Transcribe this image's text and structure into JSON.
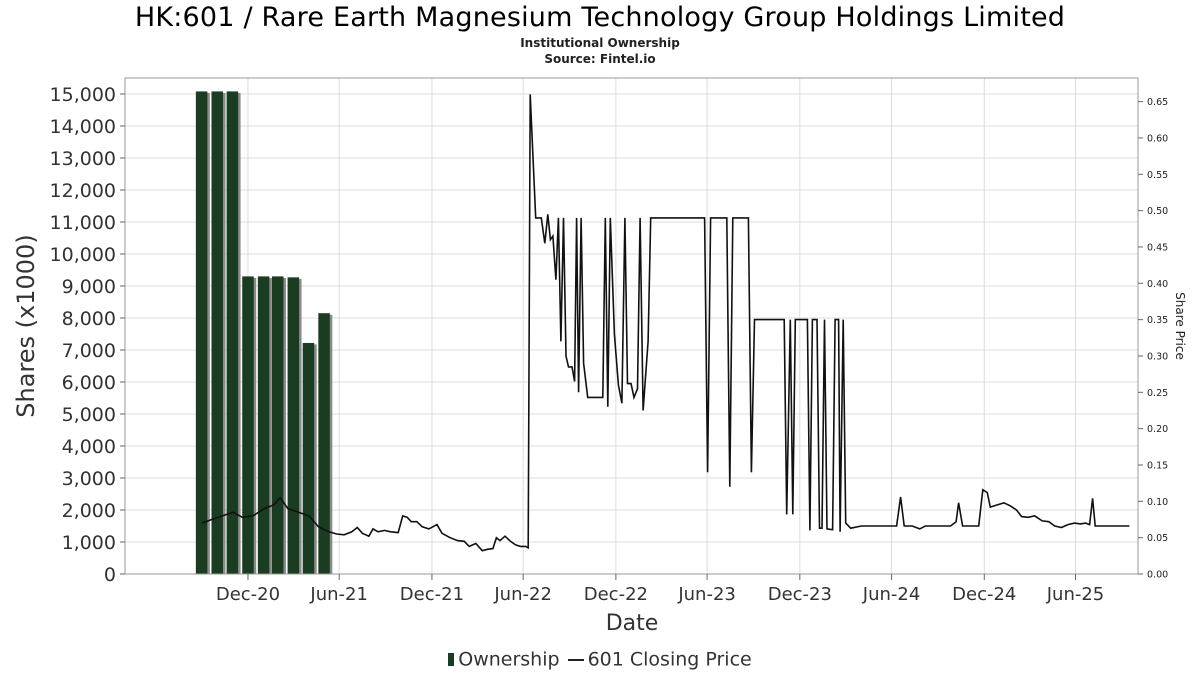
{
  "header": {
    "title": "HK:601 / Rare Earth Magnesium Technology Group Holdings Limited",
    "subtitle": "Institutional Ownership",
    "source": "Source: Fintel.io"
  },
  "legend": {
    "ownership": "Ownership",
    "price": "601 Closing Price"
  },
  "colors": {
    "bar": "#1a3d22",
    "bar_shadow": "#8a8a8a",
    "line": "#111111",
    "grid": "#dddddd"
  },
  "chart_data": {
    "type": "bar",
    "title": "HK:601 / Rare Earth Magnesium Technology Group Holdings Limited",
    "subtitle": "Institutional Ownership",
    "xlabel": "Date",
    "ylabel": "Shares (x1000)",
    "y2label": "Share Price",
    "grid": true,
    "legend_position": "bottom-center",
    "x_range": [
      "2020-05-01",
      "2025-11-01"
    ],
    "x_ticks": [
      {
        "date": "2020-12-31",
        "label": "Dec-20"
      },
      {
        "date": "2021-06-30",
        "label": "Jun-21"
      },
      {
        "date": "2021-12-31",
        "label": "Dec-21"
      },
      {
        "date": "2022-06-30",
        "label": "Jun-22"
      },
      {
        "date": "2022-12-31",
        "label": "Dec-22"
      },
      {
        "date": "2023-06-30",
        "label": "Jun-23"
      },
      {
        "date": "2023-12-31",
        "label": "Dec-23"
      },
      {
        "date": "2024-06-30",
        "label": "Jun-24"
      },
      {
        "date": "2024-12-31",
        "label": "Dec-24"
      },
      {
        "date": "2025-06-30",
        "label": "Jun-25"
      }
    ],
    "ylim": [
      0,
      15500
    ],
    "y_ticks": [
      0,
      1000,
      2000,
      3000,
      4000,
      5000,
      6000,
      7000,
      8000,
      9000,
      10000,
      11000,
      12000,
      13000,
      14000,
      15000
    ],
    "y_tick_labels": [
      "0",
      "1,000",
      "2,000",
      "3,000",
      "4,000",
      "5,000",
      "6,000",
      "7,000",
      "8,000",
      "9,000",
      "10,000",
      "11,000",
      "12,000",
      "13,000",
      "14,000",
      "15,000"
    ],
    "y2lim": [
      0,
      0.6825
    ],
    "y2_ticks": [
      0,
      0.05,
      0.1,
      0.15,
      0.2,
      0.25,
      0.3,
      0.35,
      0.4,
      0.45,
      0.5,
      0.55,
      0.6,
      0.65
    ],
    "y2_tick_labels": [
      "0.00",
      "0.05",
      "0.10",
      "0.15",
      "0.20",
      "0.25",
      "0.30",
      "0.35",
      "0.40",
      "0.45",
      "0.50",
      "0.55",
      "0.60",
      "0.65"
    ],
    "series": [
      {
        "name": "Ownership",
        "kind": "bar",
        "axis": "left",
        "points": [
          {
            "date": "2020-09-30",
            "value": 15080
          },
          {
            "date": "2020-10-31",
            "value": 15080
          },
          {
            "date": "2020-11-30",
            "value": 15080
          },
          {
            "date": "2020-12-31",
            "value": 9300
          },
          {
            "date": "2021-01-31",
            "value": 9300
          },
          {
            "date": "2021-02-28",
            "value": 9300
          },
          {
            "date": "2021-03-31",
            "value": 9270
          },
          {
            "date": "2021-04-30",
            "value": 7220
          },
          {
            "date": "2021-05-31",
            "value": 8150
          }
        ]
      },
      {
        "name": "601 Closing Price",
        "kind": "line",
        "axis": "right",
        "points": [
          [
            "2020-10-01",
            0.07
          ],
          [
            "2020-10-20",
            0.075
          ],
          [
            "2020-11-10",
            0.08
          ],
          [
            "2020-12-01",
            0.085
          ],
          [
            "2020-12-20",
            0.078
          ],
          [
            "2021-01-10",
            0.08
          ],
          [
            "2021-02-01",
            0.09
          ],
          [
            "2021-02-20",
            0.095
          ],
          [
            "2021-03-05",
            0.105
          ],
          [
            "2021-03-20",
            0.09
          ],
          [
            "2021-04-10",
            0.085
          ],
          [
            "2021-05-01",
            0.08
          ],
          [
            "2021-05-20",
            0.065
          ],
          [
            "2021-06-10",
            0.058
          ],
          [
            "2021-06-25",
            0.055
          ],
          [
            "2021-07-10",
            0.054
          ],
          [
            "2021-07-25",
            0.058
          ],
          [
            "2021-08-05",
            0.064
          ],
          [
            "2021-08-15",
            0.056
          ],
          [
            "2021-08-28",
            0.052
          ],
          [
            "2021-09-05",
            0.062
          ],
          [
            "2021-09-15",
            0.058
          ],
          [
            "2021-09-28",
            0.06
          ],
          [
            "2021-10-10",
            0.058
          ],
          [
            "2021-10-25",
            0.057
          ],
          [
            "2021-11-03",
            0.08
          ],
          [
            "2021-11-12",
            0.078
          ],
          [
            "2021-11-20",
            0.072
          ],
          [
            "2021-12-01",
            0.072
          ],
          [
            "2021-12-12",
            0.065
          ],
          [
            "2021-12-25",
            0.062
          ],
          [
            "2022-01-10",
            0.068
          ],
          [
            "2022-01-20",
            0.056
          ],
          [
            "2022-02-05",
            0.05
          ],
          [
            "2022-02-20",
            0.046
          ],
          [
            "2022-03-05",
            0.045
          ],
          [
            "2022-03-15",
            0.038
          ],
          [
            "2022-03-28",
            0.042
          ],
          [
            "2022-04-10",
            0.032
          ],
          [
            "2022-04-20",
            0.034
          ],
          [
            "2022-05-01",
            0.035
          ],
          [
            "2022-05-08",
            0.05
          ],
          [
            "2022-05-15",
            0.046
          ],
          [
            "2022-05-25",
            0.052
          ],
          [
            "2022-06-05",
            0.045
          ],
          [
            "2022-06-15",
            0.04
          ],
          [
            "2022-06-25",
            0.038
          ],
          [
            "2022-07-05",
            0.038
          ],
          [
            "2022-07-10",
            0.036
          ],
          [
            "2022-07-14",
            0.66
          ],
          [
            "2022-07-25",
            0.49
          ],
          [
            "2022-08-05",
            0.49
          ],
          [
            "2022-08-12",
            0.455
          ],
          [
            "2022-08-18",
            0.495
          ],
          [
            "2022-08-23",
            0.46
          ],
          [
            "2022-08-28",
            0.465
          ],
          [
            "2022-09-03",
            0.405
          ],
          [
            "2022-09-08",
            0.49
          ],
          [
            "2022-09-13",
            0.32
          ],
          [
            "2022-09-18",
            0.49
          ],
          [
            "2022-09-23",
            0.3
          ],
          [
            "2022-09-28",
            0.285
          ],
          [
            "2022-10-05",
            0.285
          ],
          [
            "2022-10-10",
            0.265
          ],
          [
            "2022-10-14",
            0.49
          ],
          [
            "2022-10-18",
            0.25
          ],
          [
            "2022-10-23",
            0.49
          ],
          [
            "2022-10-28",
            0.29
          ],
          [
            "2022-11-05",
            0.243
          ],
          [
            "2022-11-20",
            0.243
          ],
          [
            "2022-12-05",
            0.243
          ],
          [
            "2022-12-10",
            0.49
          ],
          [
            "2022-12-15",
            0.23
          ],
          [
            "2022-12-20",
            0.49
          ],
          [
            "2022-12-28",
            0.33
          ],
          [
            "2023-01-05",
            0.26
          ],
          [
            "2023-01-12",
            0.235
          ],
          [
            "2023-01-18",
            0.49
          ],
          [
            "2023-01-23",
            0.262
          ],
          [
            "2023-01-30",
            0.262
          ],
          [
            "2023-02-05",
            0.243
          ],
          [
            "2023-02-12",
            0.255
          ],
          [
            "2023-02-17",
            0.49
          ],
          [
            "2023-02-23",
            0.225
          ],
          [
            "2023-03-05",
            0.32
          ],
          [
            "2023-03-10",
            0.49
          ],
          [
            "2023-04-01",
            0.49
          ],
          [
            "2023-05-01",
            0.49
          ],
          [
            "2023-06-01",
            0.49
          ],
          [
            "2023-06-25",
            0.49
          ],
          [
            "2023-07-01",
            0.14
          ],
          [
            "2023-07-07",
            0.49
          ],
          [
            "2023-08-01",
            0.49
          ],
          [
            "2023-08-08",
            0.49
          ],
          [
            "2023-08-14",
            0.12
          ],
          [
            "2023-08-20",
            0.49
          ],
          [
            "2023-09-10",
            0.49
          ],
          [
            "2023-09-20",
            0.49
          ],
          [
            "2023-09-26",
            0.14
          ],
          [
            "2023-10-02",
            0.35
          ],
          [
            "2023-11-10",
            0.35
          ],
          [
            "2023-11-30",
            0.35
          ],
          [
            "2023-12-05",
            0.082
          ],
          [
            "2023-12-12",
            0.35
          ],
          [
            "2023-12-17",
            0.082
          ],
          [
            "2023-12-22",
            0.35
          ],
          [
            "2024-01-15",
            0.35
          ],
          [
            "2024-01-20",
            0.06
          ],
          [
            "2024-01-25",
            0.35
          ],
          [
            "2024-02-03",
            0.35
          ],
          [
            "2024-02-08",
            0.063
          ],
          [
            "2024-02-13",
            0.063
          ],
          [
            "2024-02-18",
            0.35
          ],
          [
            "2024-02-23",
            0.062
          ],
          [
            "2024-03-05",
            0.061
          ],
          [
            "2024-03-10",
            0.35
          ],
          [
            "2024-03-17",
            0.35
          ],
          [
            "2024-03-20",
            0.058
          ],
          [
            "2024-03-26",
            0.35
          ],
          [
            "2024-03-31",
            0.07
          ],
          [
            "2024-04-10",
            0.063
          ],
          [
            "2024-05-01",
            0.066
          ],
          [
            "2024-05-20",
            0.066
          ],
          [
            "2024-06-20",
            0.066
          ],
          [
            "2024-07-10",
            0.066
          ],
          [
            "2024-07-18",
            0.106
          ],
          [
            "2024-07-25",
            0.066
          ],
          [
            "2024-08-10",
            0.066
          ],
          [
            "2024-08-25",
            0.062
          ],
          [
            "2024-09-05",
            0.066
          ],
          [
            "2024-10-01",
            0.066
          ],
          [
            "2024-10-25",
            0.066
          ],
          [
            "2024-11-05",
            0.072
          ],
          [
            "2024-11-10",
            0.098
          ],
          [
            "2024-11-18",
            0.066
          ],
          [
            "2024-12-05",
            0.066
          ],
          [
            "2024-12-20",
            0.066
          ],
          [
            "2024-12-28",
            0.116
          ],
          [
            "2025-01-06",
            0.112
          ],
          [
            "2025-01-12",
            0.092
          ],
          [
            "2025-01-25",
            0.095
          ],
          [
            "2025-02-08",
            0.098
          ],
          [
            "2025-02-20",
            0.094
          ],
          [
            "2025-03-05",
            0.088
          ],
          [
            "2025-03-15",
            0.079
          ],
          [
            "2025-03-28",
            0.078
          ],
          [
            "2025-04-10",
            0.08
          ],
          [
            "2025-04-25",
            0.073
          ],
          [
            "2025-05-08",
            0.072
          ],
          [
            "2025-05-20",
            0.066
          ],
          [
            "2025-06-02",
            0.064
          ],
          [
            "2025-06-15",
            0.068
          ],
          [
            "2025-06-28",
            0.07
          ],
          [
            "2025-07-10",
            0.069
          ],
          [
            "2025-07-20",
            0.07
          ],
          [
            "2025-07-28",
            0.068
          ],
          [
            "2025-08-03",
            0.104
          ],
          [
            "2025-08-08",
            0.066
          ],
          [
            "2025-08-25",
            0.066
          ],
          [
            "2025-09-15",
            0.066
          ],
          [
            "2025-10-05",
            0.066
          ],
          [
            "2025-10-15",
            0.066
          ]
        ]
      }
    ]
  }
}
